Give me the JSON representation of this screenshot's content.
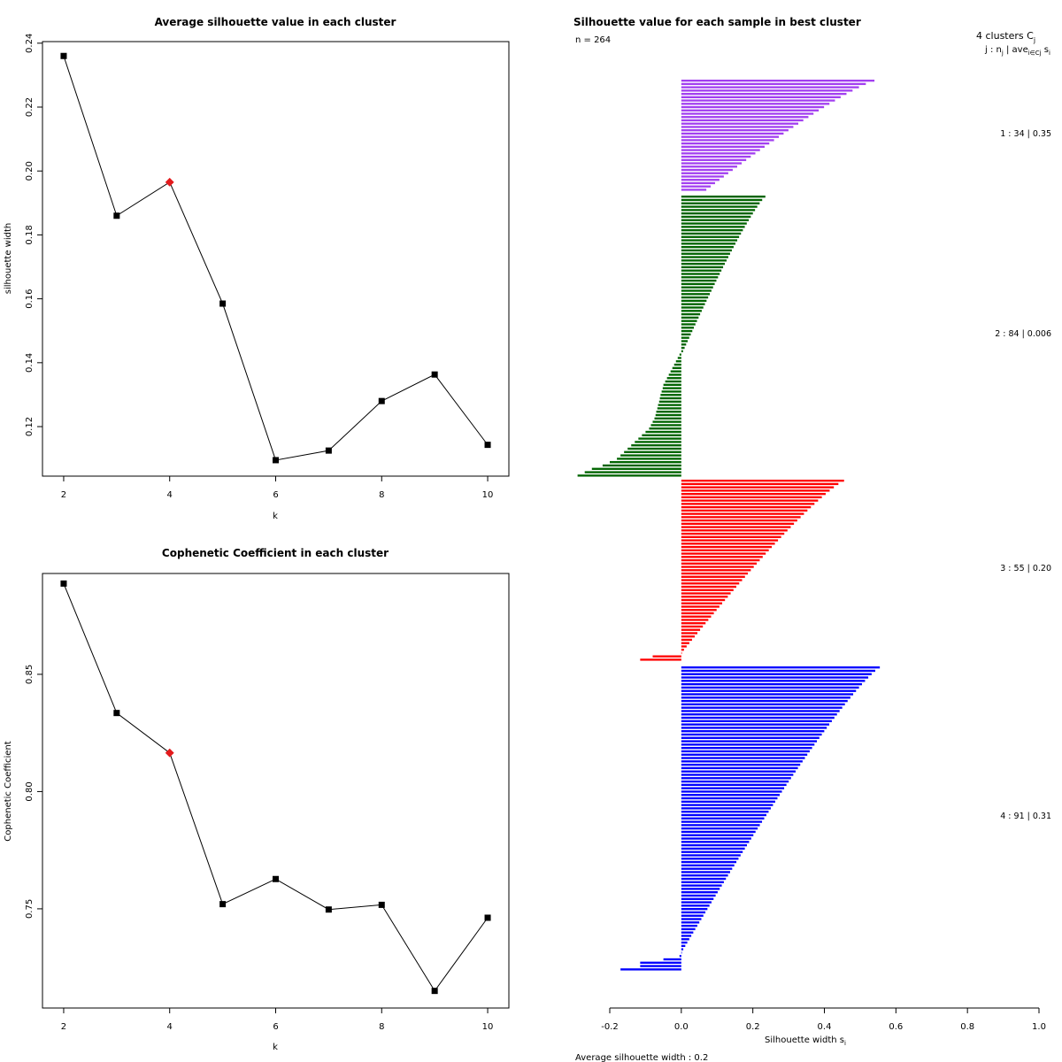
{
  "colors": {
    "point": "#000000",
    "highlight": "#e31a1c",
    "cluster1": "#a23ff0",
    "cluster2": "#006400",
    "cluster3": "#ff0000",
    "cluster4": "#0000ff"
  },
  "chart_data": [
    {
      "type": "line",
      "title": "Average silhouette value in each cluster",
      "xlabel": "k",
      "ylabel": "silhouette width",
      "x": [
        2,
        3,
        4,
        5,
        6,
        7,
        8,
        9,
        10
      ],
      "values": [
        0.236,
        0.186,
        0.1965,
        0.1585,
        0.1095,
        0.1125,
        0.128,
        0.1363,
        0.1143
      ],
      "highlight_x": 4,
      "xticks": [
        "2",
        "4",
        "6",
        "8",
        "10"
      ],
      "yticks": [
        "0.12",
        "0.14",
        "0.16",
        "0.18",
        "0.20",
        "0.22",
        "0.24"
      ],
      "xlim": [
        1.6,
        10.4
      ],
      "ylim": [
        0.1045,
        0.2405
      ]
    },
    {
      "type": "line",
      "title": "Cophenetic Coefficient in each cluster",
      "xlabel": "k",
      "ylabel": "Cophenetic Coefficient",
      "x": [
        2,
        3,
        4,
        5,
        6,
        7,
        8,
        9,
        10
      ],
      "values": [
        0.8887,
        0.8335,
        0.8165,
        0.752,
        0.7627,
        0.7497,
        0.7517,
        0.715,
        0.7462
      ],
      "highlight_x": 4,
      "xticks": [
        "2",
        "4",
        "6",
        "8",
        "10"
      ],
      "yticks": [
        "0.75",
        "0.80",
        "0.85"
      ],
      "xlim": [
        1.6,
        10.4
      ],
      "ylim": [
        0.7077,
        0.893
      ]
    },
    {
      "type": "bar",
      "orientation": "horizontal",
      "title": "Silhouette value for each sample in best cluster",
      "n_label": "n = 264",
      "header_line1": "4  clusters  C",
      "header_sub1": "j",
      "header_line2": "j :  n",
      "header_sub2": "j",
      "header_line3": " | ave",
      "header_sub3": "i∈Cj",
      "header_line4": " s",
      "header_sub4": "i",
      "xlabel": "Silhouette width s",
      "xlabel_sub": "i",
      "footer": "Average silhouette width :  0.2",
      "xticks": [
        "-0.2",
        "0.0",
        "0.2",
        "0.4",
        "0.6",
        "0.8",
        "1.0"
      ],
      "xlim": [
        -0.2,
        1.0
      ],
      "clusters": [
        {
          "label": "1 :   34  |  0.35",
          "n": 34,
          "avg": 0.35,
          "color_key": "cluster1",
          "max": 0.54,
          "min": 0.07,
          "neg": []
        },
        {
          "label": "2 :   84  |  0.006",
          "n": 84,
          "avg": 0.006,
          "color_key": "cluster2",
          "max": 0.235,
          "min": 0.005,
          "neg": [
            -0.005,
            -0.01,
            -0.015,
            -0.02,
            -0.025,
            -0.03,
            -0.035,
            -0.04,
            -0.045,
            -0.05,
            -0.052,
            -0.055,
            -0.058,
            -0.06,
            -0.062,
            -0.065,
            -0.067,
            -0.07,
            -0.072,
            -0.075,
            -0.08,
            -0.085,
            -0.09,
            -0.1,
            -0.11,
            -0.12,
            -0.13,
            -0.14,
            -0.15,
            -0.16,
            -0.17,
            -0.18,
            -0.2,
            -0.22,
            -0.25,
            -0.27,
            -0.29
          ]
        },
        {
          "label": "3 :   55  |  0.20",
          "n": 55,
          "avg": 0.2,
          "color_key": "cluster3",
          "max": 0.455,
          "min": 0.0,
          "neg": [
            -0.08,
            -0.115
          ]
        },
        {
          "label": "4 :   91  |  0.31",
          "n": 91,
          "avg": 0.31,
          "color_key": "cluster4",
          "max": 0.555,
          "min": 0.0,
          "neg": [
            -0.005,
            -0.05,
            -0.115,
            -0.115,
            -0.17
          ]
        }
      ]
    }
  ]
}
